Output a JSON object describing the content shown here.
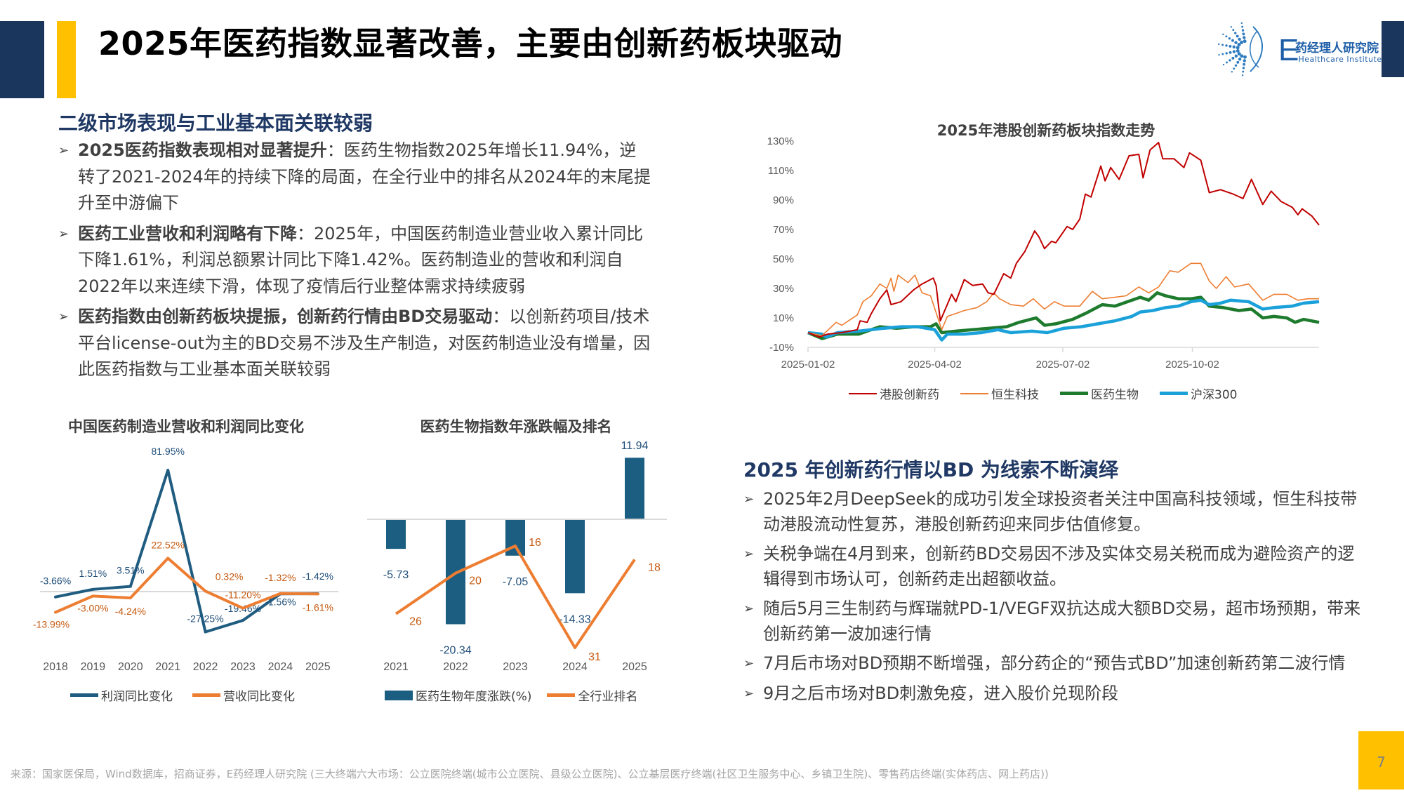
{
  "header": {
    "title": "2025年医药指数显著改善，主要由创新药板块驱动",
    "logo": {
      "mark": "E",
      "name_cn": "药经理人研究院",
      "name_en": "-Healthcare Institute"
    }
  },
  "left_section": {
    "heading": "二级市场表现与工业基本面关联较弱",
    "bullets": [
      {
        "bold": "2025医药指数表现相对显著提升",
        "text": "：医药生物指数2025年增长11.94%，逆转了2021-2024年的持续下降的局面，在全行业中的排名从2024年的末尾提升至中游偏下"
      },
      {
        "bold": "医药工业营收和利润略有下降",
        "text": "：2025年，中国医药制造业营业收入累计同比下降1.61%，利润总额累计同比下降1.42%。医药制造业的营收和利润自2022年以来连续下滑，体现了疫情后行业整体需求持续疲弱"
      },
      {
        "bold": "医药指数由创新药板块提振，创新药行情由BD交易驱动",
        "text": "：以创新药项目/技术平台license-out为主的BD交易不涉及生产制造，对医药制造业没有增量，因此医药指数与工业基本面关联较弱"
      }
    ]
  },
  "right_section": {
    "heading": "2025 年创新药行情以BD 为线索不断演绎",
    "bullets": [
      "2025年2月DeepSeek的成功引发全球投资者关注中国高科技领域，恒生科技带动港股流动性复苏，港股创新药迎来同步估值修复。",
      "关税争端在4月到来，创新药BD交易因不涉及实体交易关税而成为避险资产的逻辑得到市场认可，创新药走出超额收益。",
      "随后5月三生制药与辉瑞就PD-1/VEGF双抗达成大额BD交易，超市场预期，带来创新药第一波加速行情",
      "7月后市场对BD预期不断增强，部分药企的“预告式BD”加速创新药第二波行情",
      "9月之后市场对BD刺激免疫，进入股价兑现阶段"
    ]
  },
  "bullet_icon": "arrow-right-icon",
  "footer": {
    "source": "来源：国家医保局，Wind数据库，招商证券，E药经理人研究院 (三大终端六大市场：公立医院终端(城市公立医院、县级公立医院)、公立基层医疗终端(社区卫生服务中心、乡镇卫生院)、零售药店终端(实体药店、网上药店))",
    "page_number": "7"
  },
  "colors": {
    "navy": "#1B365D",
    "yellow": "#FFC000",
    "heading": "#1F3864"
  },
  "chart_data": [
    {
      "type": "line",
      "title": "中国医药制造业营收和利润同比变化",
      "categories": [
        "2018",
        "2019",
        "2020",
        "2021",
        "2022",
        "2023",
        "2024",
        "2025"
      ],
      "series": [
        {
          "name": "利润同比变化",
          "color": "#1F5C80",
          "values": [
            -3.66,
            1.51,
            3.51,
            81.95,
            -27.25,
            -19.46,
            -1.56,
            -1.42
          ],
          "labels": [
            "-3.66%",
            "1.51%",
            "3.51%",
            "81.95%",
            "-27.25%",
            "-19.46%",
            "-1.56%",
            "-1.42%"
          ]
        },
        {
          "name": "营收同比变化",
          "color": "#ED7D31",
          "values": [
            -13.99,
            -3.0,
            -4.24,
            22.52,
            0.32,
            -11.2,
            -1.32,
            -1.61
          ],
          "labels": [
            "-13.99%",
            "-3.00%",
            "-4.24%",
            "22.52%",
            "0.32%",
            "-11.20%",
            "-1.32%",
            "-1.61%"
          ]
        }
      ],
      "unit": "%",
      "legend": "bottom"
    },
    {
      "type": "bar+line",
      "title": "医药生物指数年涨跌幅及排名",
      "categories": [
        "2021",
        "2022",
        "2023",
        "2024",
        "2025"
      ],
      "series": [
        {
          "name": "医药生物年度涨跌(%)",
          "type": "bar",
          "color": "#1B5E82",
          "values": [
            -5.73,
            -20.34,
            -7.05,
            -14.33,
            11.94
          ],
          "labels": [
            "-5.73",
            "-20.34",
            "-7.05",
            "-14.33",
            "11.94"
          ]
        },
        {
          "name": "全行业排名",
          "type": "line",
          "color": "#ED7D31",
          "values": [
            26,
            20,
            16,
            31,
            18
          ],
          "labels": [
            "26",
            "20",
            "16",
            "31",
            "18"
          ],
          "axis": "secondary-inverted"
        }
      ],
      "legend": "bottom"
    },
    {
      "type": "line",
      "title": "2025年港股创新药板块指数走势",
      "x_type": "date",
      "xlim": [
        "2025-01-02",
        "2025-12-31"
      ],
      "x_ticks": [
        "2025-01-02",
        "2025-04-02",
        "2025-07-02",
        "2025-10-02"
      ],
      "ylim": [
        -10,
        130
      ],
      "y_ticks": [
        "130%",
        "110%",
        "90%",
        "70%",
        "50%",
        "30%",
        "10%",
        "-10%"
      ],
      "y_tick_values": [
        130,
        110,
        90,
        70,
        50,
        30,
        10,
        -10
      ],
      "grid": false,
      "legend": "bottom",
      "series": [
        {
          "name": "港股创新药",
          "color": "#C00000",
          "width": 2,
          "points": [
            [
              "2025-01-02",
              0
            ],
            [
              "2025-01-10",
              -3
            ],
            [
              "2025-01-16",
              -1
            ],
            [
              "2025-01-26",
              0
            ],
            [
              "2025-02-06",
              2
            ],
            [
              "2025-02-08",
              8
            ],
            [
              "2025-02-13",
              7
            ],
            [
              "2025-02-16",
              13
            ],
            [
              "2025-02-22",
              23
            ],
            [
              "2025-02-27",
              29
            ],
            [
              "2025-03-02",
              19
            ],
            [
              "2025-03-09",
              21
            ],
            [
              "2025-03-18",
              29
            ],
            [
              "2025-03-24",
              33
            ],
            [
              "2025-04-01",
              37
            ],
            [
              "2025-04-03",
              32
            ],
            [
              "2025-04-06",
              8
            ],
            [
              "2025-04-14",
              26
            ],
            [
              "2025-04-17",
              21
            ],
            [
              "2025-04-23",
              36
            ],
            [
              "2025-04-29",
              32
            ],
            [
              "2025-05-06",
              33
            ],
            [
              "2025-05-10",
              27
            ],
            [
              "2025-05-14",
              26
            ],
            [
              "2025-05-21",
              40
            ],
            [
              "2025-05-26",
              37
            ],
            [
              "2025-05-30",
              47
            ],
            [
              "2025-06-05",
              55
            ],
            [
              "2025-06-12",
              69
            ],
            [
              "2025-06-15",
              65
            ],
            [
              "2025-06-19",
              57
            ],
            [
              "2025-06-24",
              62
            ],
            [
              "2025-06-27",
              61
            ],
            [
              "2025-07-05",
              72
            ],
            [
              "2025-07-09",
              70
            ],
            [
              "2025-07-14",
              77
            ],
            [
              "2025-07-18",
              94
            ],
            [
              "2025-07-22",
              92
            ],
            [
              "2025-07-29",
              113
            ],
            [
              "2025-08-01",
              103
            ],
            [
              "2025-08-05",
              112
            ],
            [
              "2025-08-11",
              104
            ],
            [
              "2025-08-18",
              120
            ],
            [
              "2025-08-25",
              121
            ],
            [
              "2025-08-28",
              105
            ],
            [
              "2025-09-02",
              124
            ],
            [
              "2025-09-08",
              129
            ],
            [
              "2025-09-11",
              118
            ],
            [
              "2025-09-19",
              118
            ],
            [
              "2025-09-26",
              112
            ],
            [
              "2025-09-30",
              122
            ],
            [
              "2025-10-08",
              117
            ],
            [
              "2025-10-14",
              95
            ],
            [
              "2025-10-22",
              97
            ],
            [
              "2025-10-31",
              94
            ],
            [
              "2025-11-07",
              91
            ],
            [
              "2025-11-13",
              104
            ],
            [
              "2025-11-21",
              87
            ],
            [
              "2025-11-27",
              96
            ],
            [
              "2025-12-04",
              89
            ],
            [
              "2025-12-12",
              85
            ],
            [
              "2025-12-16",
              80
            ],
            [
              "2025-12-19",
              84
            ],
            [
              "2025-12-26",
              79
            ],
            [
              "2025-12-31",
              73
            ]
          ]
        },
        {
          "name": "恒生科技",
          "color": "#ED7D31",
          "width": 1.6,
          "points": [
            [
              "2025-01-02",
              0
            ],
            [
              "2025-01-12",
              -2
            ],
            [
              "2025-01-22",
              7
            ],
            [
              "2025-01-26",
              5
            ],
            [
              "2025-02-06",
              12
            ],
            [
              "2025-02-10",
              21
            ],
            [
              "2025-02-16",
              25
            ],
            [
              "2025-02-22",
              33
            ],
            [
              "2025-02-27",
              30
            ],
            [
              "2025-03-02",
              37
            ],
            [
              "2025-03-04",
              28
            ],
            [
              "2025-03-07",
              39
            ],
            [
              "2025-03-14",
              34
            ],
            [
              "2025-03-19",
              39
            ],
            [
              "2025-03-24",
              27
            ],
            [
              "2025-03-30",
              25
            ],
            [
              "2025-04-07",
              2
            ],
            [
              "2025-04-11",
              11
            ],
            [
              "2025-04-17",
              13
            ],
            [
              "2025-04-23",
              15
            ],
            [
              "2025-05-02",
              17
            ],
            [
              "2025-05-09",
              21
            ],
            [
              "2025-05-14",
              27
            ],
            [
              "2025-05-18",
              23
            ],
            [
              "2025-05-26",
              19
            ],
            [
              "2025-06-04",
              18
            ],
            [
              "2025-06-11",
              23
            ],
            [
              "2025-06-19",
              16
            ],
            [
              "2025-06-26",
              21
            ],
            [
              "2025-07-03",
              18
            ],
            [
              "2025-07-14",
              18
            ],
            [
              "2025-07-23",
              28
            ],
            [
              "2025-07-30",
              23
            ],
            [
              "2025-08-08",
              24
            ],
            [
              "2025-08-16",
              25
            ],
            [
              "2025-08-25",
              31
            ],
            [
              "2025-09-01",
              27
            ],
            [
              "2025-09-08",
              31
            ],
            [
              "2025-09-16",
              42
            ],
            [
              "2025-09-22",
              41
            ],
            [
              "2025-10-01",
              47
            ],
            [
              "2025-10-08",
              47
            ],
            [
              "2025-10-14",
              35
            ],
            [
              "2025-10-19",
              30
            ],
            [
              "2025-10-26",
              38
            ],
            [
              "2025-11-01",
              31
            ],
            [
              "2025-11-11",
              33
            ],
            [
              "2025-11-21",
              22
            ],
            [
              "2025-11-29",
              26
            ],
            [
              "2025-12-08",
              26
            ],
            [
              "2025-12-16",
              22
            ],
            [
              "2025-12-23",
              23
            ],
            [
              "2025-12-31",
              23
            ]
          ]
        },
        {
          "name": "医药生物",
          "color": "#1E7B2E",
          "width": 4.5,
          "points": [
            [
              "2025-01-02",
              0
            ],
            [
              "2025-01-12",
              -4
            ],
            [
              "2025-01-23",
              -1
            ],
            [
              "2025-02-07",
              -1
            ],
            [
              "2025-02-16",
              2
            ],
            [
              "2025-02-22",
              4
            ],
            [
              "2025-03-06",
              3
            ],
            [
              "2025-03-18",
              4
            ],
            [
              "2025-03-30",
              4
            ],
            [
              "2025-04-03",
              6
            ],
            [
              "2025-04-07",
              0
            ],
            [
              "2025-04-17",
              1
            ],
            [
              "2025-04-29",
              2
            ],
            [
              "2025-05-11",
              3
            ],
            [
              "2025-05-23",
              4
            ],
            [
              "2025-06-01",
              7
            ],
            [
              "2025-06-13",
              10
            ],
            [
              "2025-06-19",
              5
            ],
            [
              "2025-06-27",
              6
            ],
            [
              "2025-07-09",
              9
            ],
            [
              "2025-07-18",
              13
            ],
            [
              "2025-07-30",
              19
            ],
            [
              "2025-08-08",
              18
            ],
            [
              "2025-08-17",
              21
            ],
            [
              "2025-08-26",
              24
            ],
            [
              "2025-09-01",
              22
            ],
            [
              "2025-09-07",
              27
            ],
            [
              "2025-09-13",
              25
            ],
            [
              "2025-09-22",
              23
            ],
            [
              "2025-10-01",
              23
            ],
            [
              "2025-10-08",
              24
            ],
            [
              "2025-10-14",
              18
            ],
            [
              "2025-10-24",
              17
            ],
            [
              "2025-11-04",
              15
            ],
            [
              "2025-11-13",
              16
            ],
            [
              "2025-11-21",
              10
            ],
            [
              "2025-11-29",
              11
            ],
            [
              "2025-12-08",
              10
            ],
            [
              "2025-12-14",
              7
            ],
            [
              "2025-12-20",
              9
            ],
            [
              "2025-12-31",
              7
            ]
          ]
        },
        {
          "name": "沪深300",
          "color": "#1BA1D9",
          "width": 4.5,
          "points": [
            [
              "2025-01-02",
              0
            ],
            [
              "2025-01-12",
              -1
            ],
            [
              "2025-01-15",
              -3
            ],
            [
              "2025-01-23",
              0
            ],
            [
              "2025-02-07",
              1
            ],
            [
              "2025-02-16",
              2
            ],
            [
              "2025-02-25",
              3
            ],
            [
              "2025-03-09",
              4
            ],
            [
              "2025-03-21",
              4
            ],
            [
              "2025-04-02",
              2
            ],
            [
              "2025-04-07",
              -5
            ],
            [
              "2025-04-11",
              -1
            ],
            [
              "2025-04-23",
              -1
            ],
            [
              "2025-05-05",
              0
            ],
            [
              "2025-05-17",
              2
            ],
            [
              "2025-05-26",
              0
            ],
            [
              "2025-06-10",
              1
            ],
            [
              "2025-06-21",
              0
            ],
            [
              "2025-07-03",
              3
            ],
            [
              "2025-07-15",
              4
            ],
            [
              "2025-07-27",
              6
            ],
            [
              "2025-08-08",
              8
            ],
            [
              "2025-08-20",
              11
            ],
            [
              "2025-08-26",
              14
            ],
            [
              "2025-09-04",
              15
            ],
            [
              "2025-09-13",
              17
            ],
            [
              "2025-09-22",
              18
            ],
            [
              "2025-10-01",
              21
            ],
            [
              "2025-10-08",
              22
            ],
            [
              "2025-10-14",
              19
            ],
            [
              "2025-10-22",
              20
            ],
            [
              "2025-10-29",
              22
            ],
            [
              "2025-11-11",
              21
            ],
            [
              "2025-11-21",
              16
            ],
            [
              "2025-11-29",
              17
            ],
            [
              "2025-12-12",
              18
            ],
            [
              "2025-12-20",
              20
            ],
            [
              "2025-12-31",
              21
            ]
          ]
        }
      ]
    }
  ]
}
